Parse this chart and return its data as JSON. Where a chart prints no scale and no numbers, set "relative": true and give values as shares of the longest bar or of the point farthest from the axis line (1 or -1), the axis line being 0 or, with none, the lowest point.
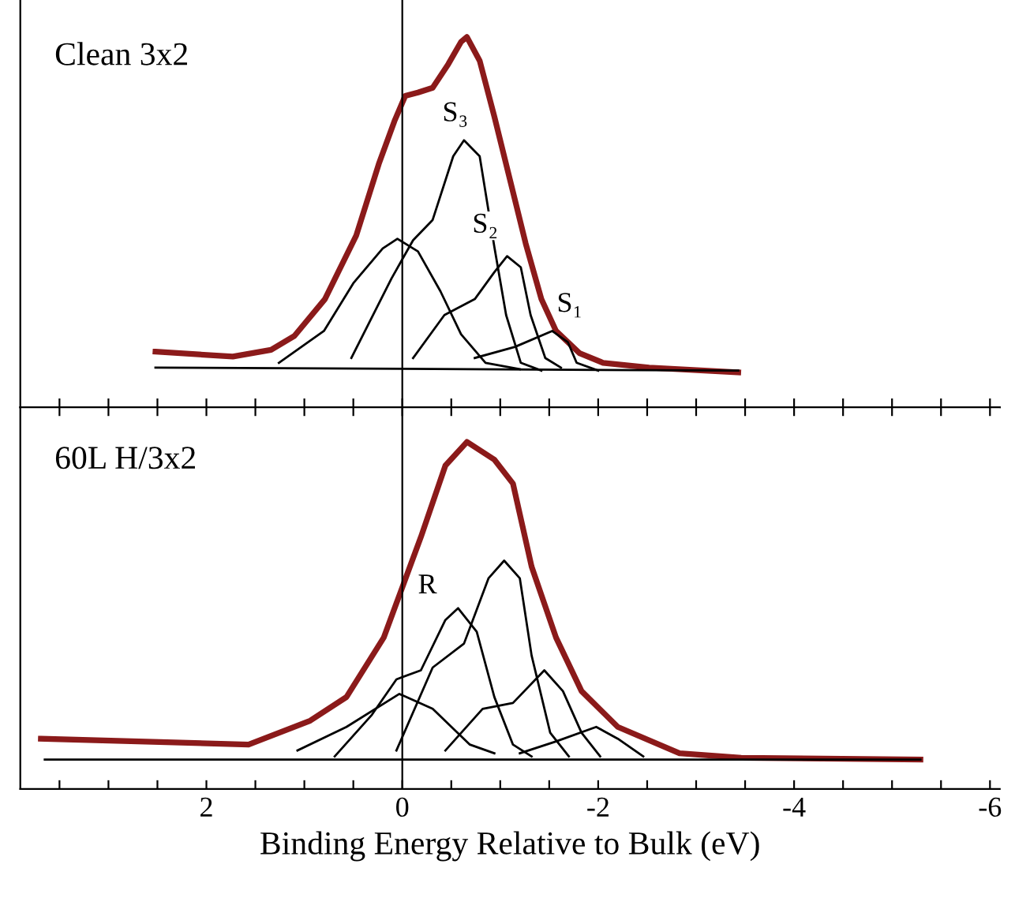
{
  "chart_data": [
    {
      "type": "line",
      "relative": true,
      "xlim": [
        3.9,
        -6.1
      ],
      "tick_labels": false,
      "xticks": [
        {
          "value": 3.5,
          "label": null
        },
        {
          "value": 3,
          "label": null
        },
        {
          "value": 2.5,
          "label": null
        },
        {
          "value": 2,
          "label": null
        },
        {
          "value": 1.5,
          "label": null
        },
        {
          "value": 1,
          "label": null
        },
        {
          "value": 0.5,
          "label": null
        },
        {
          "value": 0,
          "label": null
        },
        {
          "value": -0.5,
          "label": null
        },
        {
          "value": -1,
          "label": null
        },
        {
          "value": -1.5,
          "label": null
        },
        {
          "value": -2,
          "label": null
        },
        {
          "value": -2.5,
          "label": null
        },
        {
          "value": -3,
          "label": null
        },
        {
          "value": -3.5,
          "label": null
        },
        {
          "value": -4,
          "label": null
        },
        {
          "value": -4.5,
          "label": null
        },
        {
          "value": -5,
          "label": null
        },
        {
          "value": -5.5,
          "label": null
        },
        {
          "value": -6,
          "label": null
        }
      ],
      "marker": "none",
      "line_style": "solid",
      "grid": false,
      "ref_lines": [
        {
          "axis": "x",
          "value": 0,
          "label": null,
          "color": "#000000"
        }
      ],
      "annotations": [
        "Clean 3x2",
        {
          "text": "S₃",
          "x": -0.63,
          "y": 0.721
        },
        {
          "text": "S₂",
          "x": -1.07,
          "y": 0.408
        },
        {
          "text": "S₁",
          "x": -1.53,
          "y": 0.206
        }
      ],
      "series": [
        {
          "color": "#8b1a1a",
          "x": [
            2.52,
            1.73,
            1.34,
            1.1,
            0.79,
            0.47,
            0.24,
            0.08,
            -0.03,
            -0.16,
            -0.31,
            -0.47,
            -0.6,
            -0.66,
            -0.79,
            -0.94,
            -1.1,
            -1.26,
            -1.42,
            -1.57,
            -1.81,
            -2.05,
            -2.52,
            -3.43
          ],
          "values": [
            0.15,
            0.137,
            0.155,
            0.193,
            0.292,
            0.464,
            0.657,
            0.773,
            0.841,
            0.85,
            0.863,
            0.927,
            0.987,
            1.0,
            0.936,
            0.785,
            0.614,
            0.442,
            0.292,
            0.206,
            0.146,
            0.12,
            0.107,
            0.094
          ]
        },
        {
          "color": "#000000",
          "x": [
            2.52,
            -3.43
          ],
          "values": [
            0.107,
            0.099
          ]
        },
        {
          "color": "#000000",
          "x": [
            1.26,
            0.8,
            0.5,
            0.2,
            0.05,
            -0.16,
            -0.39,
            -0.6,
            -0.85,
            -1.2
          ],
          "values": [
            0.12,
            0.206,
            0.335,
            0.429,
            0.455,
            0.421,
            0.313,
            0.197,
            0.12,
            0.103
          ]
        },
        {
          "color": "#000000",
          "x": [
            0.52,
            0.11,
            -0.11,
            -0.31,
            -0.52,
            -0.63,
            -0.79,
            -0.94,
            -1.06,
            -1.21,
            -1.42
          ],
          "values": [
            0.133,
            0.348,
            0.451,
            0.506,
            0.678,
            0.721,
            0.678,
            0.433,
            0.249,
            0.12,
            0.099
          ]
        },
        {
          "color": "#000000",
          "x": [
            -0.11,
            -0.43,
            -0.74,
            -0.94,
            -1.07,
            -1.21,
            -1.31,
            -1.46,
            -1.62
          ],
          "values": [
            0.133,
            0.249,
            0.292,
            0.365,
            0.408,
            0.378,
            0.249,
            0.133,
            0.107
          ]
        },
        {
          "color": "#000000",
          "x": [
            -0.74,
            -1.15,
            -1.53,
            -1.69,
            -1.78,
            -2.0
          ],
          "values": [
            0.133,
            0.163,
            0.206,
            0.176,
            0.12,
            0.099
          ]
        }
      ]
    },
    {
      "type": "line",
      "relative": true,
      "xlim": [
        3.9,
        -6.1
      ],
      "xlabel": "Binding Energy Relative to Bulk (eV)",
      "xticks": [
        {
          "value": 3.5,
          "label": null
        },
        {
          "value": 3,
          "label": null
        },
        {
          "value": 2.5,
          "label": null
        },
        2,
        {
          "value": 1.5,
          "label": null
        },
        {
          "value": 1,
          "label": null
        },
        {
          "value": 0.5,
          "label": null
        },
        0,
        {
          "value": -0.5,
          "label": null
        },
        {
          "value": -1,
          "label": null
        },
        {
          "value": -1.5,
          "label": null
        },
        -2,
        {
          "value": -2.5,
          "label": null
        },
        {
          "value": -3,
          "label": null
        },
        {
          "value": -3.5,
          "label": null
        },
        -4,
        {
          "value": -4.5,
          "label": null
        },
        {
          "value": -5,
          "label": null
        },
        {
          "value": -5.5,
          "label": null
        },
        -6
      ],
      "tick_labels": "x",
      "marker": "none",
      "line_style": "solid",
      "grid": false,
      "ref_lines": [
        {
          "axis": "x",
          "value": 0,
          "label": null,
          "color": "#000000"
        }
      ],
      "annotations": [
        "60L H/3x2",
        {
          "text": "R",
          "x": -0.57,
          "y": 0.521
        }
      ],
      "series": [
        {
          "color": "#8b1a1a",
          "x": [
            3.69,
            1.57,
            0.94,
            0.57,
            0.19,
            -0.19,
            -0.44,
            -0.66,
            -0.94,
            -1.13,
            -1.32,
            -1.57,
            -1.83,
            -2.2,
            -2.83,
            -3.46,
            -5.29
          ],
          "values": [
            0.145,
            0.128,
            0.197,
            0.265,
            0.436,
            0.726,
            0.932,
            1.0,
            0.949,
            0.88,
            0.641,
            0.436,
            0.282,
            0.179,
            0.103,
            0.09,
            0.085
          ]
        },
        {
          "color": "#000000",
          "x": [
            3.65,
            -5.29
          ],
          "values": [
            0.085,
            0.085
          ]
        },
        {
          "color": "#000000",
          "x": [
            1.07,
            0.57,
            0.03,
            -0.31,
            -0.69,
            -0.94
          ],
          "values": [
            0.111,
            0.179,
            0.274,
            0.231,
            0.128,
            0.103
          ]
        },
        {
          "color": "#000000",
          "x": [
            0.69,
            0.31,
            0.06,
            -0.19,
            -0.44,
            -0.57,
            -0.76,
            -0.94,
            -1.13,
            -1.32
          ],
          "values": [
            0.094,
            0.214,
            0.316,
            0.342,
            0.487,
            0.521,
            0.453,
            0.265,
            0.128,
            0.094
          ]
        },
        {
          "color": "#000000",
          "x": [
            0.06,
            -0.31,
            -0.63,
            -0.88,
            -1.04,
            -1.2,
            -1.32,
            -1.51,
            -1.7
          ],
          "values": [
            0.111,
            0.35,
            0.419,
            0.607,
            0.658,
            0.607,
            0.385,
            0.162,
            0.094
          ]
        },
        {
          "color": "#000000",
          "x": [
            -0.44,
            -0.82,
            -1.13,
            -1.45,
            -1.64,
            -1.83,
            -2.02
          ],
          "values": [
            0.111,
            0.231,
            0.248,
            0.342,
            0.282,
            0.162,
            0.094
          ]
        },
        {
          "color": "#000000",
          "x": [
            -1.2,
            -1.57,
            -1.98,
            -2.2,
            -2.46
          ],
          "values": [
            0.103,
            0.137,
            0.179,
            0.145,
            0.094
          ]
        }
      ]
    }
  ]
}
